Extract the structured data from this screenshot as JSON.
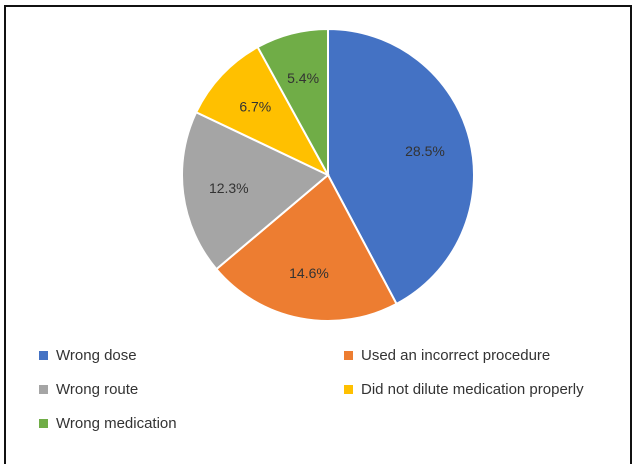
{
  "chart_data": {
    "type": "pie",
    "categories": [
      "Wrong dose",
      "Used an incorrect procedure",
      "Wrong route",
      "Did not dilute medication properly",
      "Wrong medication"
    ],
    "values": [
      28.5,
      14.6,
      12.3,
      6.7,
      5.4
    ],
    "value_labels": [
      "28.5%",
      "14.6%",
      "12.3%",
      "6.7%",
      "5.4%"
    ],
    "colors": [
      "#4472C4",
      "#ED7D31",
      "#A5A5A5",
      "#FFC000",
      "#70AD47"
    ],
    "start_angle_deg": 0,
    "direction": "clockwise",
    "legend_position": "bottom",
    "title": ""
  }
}
